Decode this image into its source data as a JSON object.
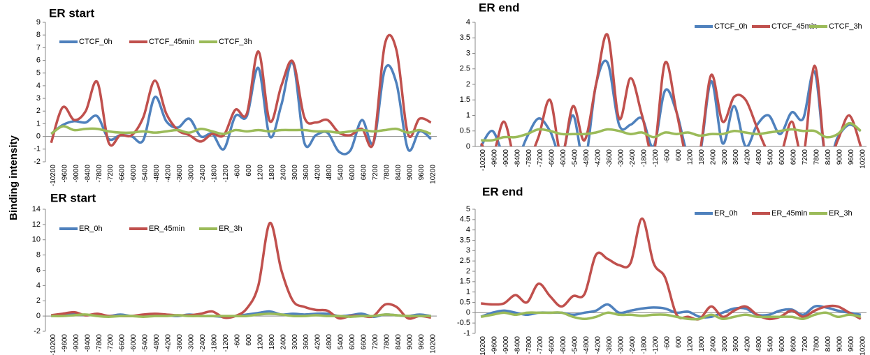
{
  "ylabel": "Binding intensity",
  "chart_data": [
    {
      "type": "line",
      "title": "ER start",
      "legend": "top-left",
      "categories": [
        -10200,
        -9600,
        -9000,
        -8400,
        -7800,
        -7200,
        -6600,
        -6000,
        -5400,
        -4800,
        -4200,
        -3600,
        -3000,
        -2400,
        -1800,
        -1200,
        -600,
        600,
        1200,
        1800,
        2400,
        3000,
        3600,
        4200,
        4800,
        5400,
        6000,
        6600,
        7200,
        7800,
        8400,
        9000,
        9600,
        10200
      ],
      "ylim": [
        -2,
        9
      ],
      "yticks": [
        -2,
        -1,
        0,
        1,
        2,
        3,
        4,
        5,
        6,
        7,
        8,
        9
      ],
      "series": [
        {
          "name": "CTCF_0h",
          "color": "#4f81bd",
          "values": [
            0.2,
            0.9,
            1.2,
            1.1,
            1.6,
            -0.2,
            0.1,
            0,
            -0.3,
            3.1,
            1.2,
            0.7,
            1.4,
            0,
            0.2,
            -1,
            1.6,
            1.6,
            5.4,
            0,
            2.5,
            5.8,
            -0.5,
            0.1,
            0.3,
            -1.2,
            -1.1,
            1.3,
            -0.5,
            5.3,
            4.2,
            -1,
            0.4,
            -0.2
          ]
        },
        {
          "name": "CTCF_45min",
          "color": "#c0504d",
          "values": [
            -0.5,
            2.3,
            1.3,
            2,
            4.3,
            -0.5,
            0.1,
            0.1,
            1.5,
            4.4,
            1.8,
            0.5,
            0.1,
            -0.4,
            0.2,
            0.1,
            2.1,
            1.8,
            6.7,
            1.2,
            4,
            5.9,
            1.5,
            1.1,
            1.3,
            0.3,
            0.1,
            0.6,
            -0.5,
            7.3,
            6.8,
            0.2,
            1.4,
            1.1
          ]
        },
        {
          "name": "CTCF_3h",
          "color": "#9bbb59",
          "values": [
            0.2,
            0.8,
            0.5,
            0.6,
            0.6,
            0.4,
            0.3,
            0.3,
            0.4,
            0.3,
            0.4,
            0.5,
            0.3,
            0.6,
            0.4,
            0.2,
            0.5,
            0.4,
            0.5,
            0.4,
            0.5,
            0.5,
            0.5,
            0.4,
            0.4,
            0.3,
            0.4,
            0.5,
            0.4,
            0.5,
            0.6,
            0.3,
            0.5,
            0.2
          ]
        }
      ]
    },
    {
      "type": "line",
      "title": "ER end",
      "legend": "top-right",
      "categories": [
        -10200,
        -9600,
        -9000,
        -8400,
        -7800,
        -7200,
        -6600,
        -6000,
        -5400,
        -4800,
        -4200,
        -3600,
        -3000,
        -2400,
        -1800,
        -1200,
        -600,
        600,
        1200,
        1800,
        2400,
        3000,
        3600,
        4200,
        4800,
        5400,
        6000,
        6600,
        7200,
        7800,
        8400,
        9000,
        9600,
        10200
      ],
      "ylim": [
        0,
        4
      ],
      "yticks": [
        0,
        0.5,
        1,
        1.5,
        2,
        2.5,
        3,
        3.5,
        4
      ],
      "series": [
        {
          "name": "CTCF_0h",
          "color": "#4f81bd",
          "values": [
            0,
            0.5,
            -0.3,
            -0.5,
            0.3,
            0.9,
            0.5,
            -0.3,
            1,
            -0.5,
            2,
            2.7,
            0.7,
            0.7,
            0.9,
            0,
            1.8,
            1.1,
            -0.3,
            -0.3,
            2.1,
            0.1,
            1.3,
            0,
            0.7,
            1,
            0.4,
            1.1,
            0.9,
            2.4,
            -0.5,
            0.3,
            0.7,
            0.5
          ]
        },
        {
          "name": "CTCF_45min",
          "color": "#c0504d",
          "values": [
            0.1,
            -0.3,
            0.8,
            -0.5,
            -0.5,
            0.3,
            1.5,
            -0.3,
            1.3,
            0.2,
            2,
            3.6,
            0.9,
            2.2,
            1,
            -0.2,
            2.7,
            1.1,
            -0.5,
            -0.2,
            2.3,
            0.8,
            1.6,
            1.5,
            0.6,
            -0.2,
            -0.3,
            0.8,
            -0.3,
            2.6,
            -0.5,
            0.2,
            1,
            0
          ]
        },
        {
          "name": "CTCF_3h",
          "color": "#9bbb59",
          "values": [
            0.2,
            0.2,
            0.3,
            0.3,
            0.4,
            0.55,
            0.5,
            0.4,
            0.4,
            0.4,
            0.45,
            0.55,
            0.5,
            0.4,
            0.45,
            0.3,
            0.45,
            0.4,
            0.45,
            0.35,
            0.4,
            0.4,
            0.5,
            0.45,
            0.4,
            0.45,
            0.5,
            0.55,
            0.5,
            0.5,
            0.3,
            0.4,
            0.75,
            0.5
          ]
        }
      ]
    },
    {
      "type": "line",
      "title": "ER start",
      "legend": "top-left",
      "categories": [
        -10200,
        -9600,
        -9000,
        -8400,
        -7800,
        -7200,
        -6600,
        -6000,
        -5400,
        -4800,
        -4200,
        -3600,
        -3000,
        -2400,
        -1800,
        -1200,
        -600,
        600,
        1200,
        1800,
        2400,
        3000,
        3600,
        4200,
        4800,
        5400,
        6000,
        6600,
        7200,
        7800,
        8400,
        9000,
        9600,
        10200
      ],
      "ylim": [
        -2,
        14
      ],
      "yticks": [
        -2,
        0,
        2,
        4,
        6,
        8,
        10,
        12,
        14
      ],
      "series": [
        {
          "name": "ER_0h",
          "color": "#4f81bd",
          "values": [
            0,
            0.2,
            0.3,
            0.1,
            0.2,
            0,
            0.2,
            0,
            0.1,
            0.2,
            0.1,
            0,
            0.2,
            0,
            0,
            -0.1,
            0,
            0.2,
            0.4,
            0.6,
            0.2,
            0.3,
            0.2,
            0.3,
            0.3,
            0,
            0.1,
            0.3,
            -0.1,
            0.2,
            0.1,
            0,
            0.2,
            0
          ]
        },
        {
          "name": "ER_45min",
          "color": "#c0504d",
          "values": [
            0.1,
            0.3,
            0.5,
            0.1,
            0.3,
            0,
            0,
            0,
            0.2,
            0.3,
            0.2,
            0.1,
            0.1,
            0.3,
            0.6,
            -0.2,
            0,
            1,
            4,
            12.2,
            6,
            2,
            1.2,
            0.8,
            0.7,
            -0.3,
            0,
            0,
            0,
            1.5,
            1.2,
            -0.3,
            0,
            -0.2
          ]
        },
        {
          "name": "ER_3h",
          "color": "#9bbb59",
          "values": [
            0,
            0,
            0.1,
            0.2,
            0,
            -0.1,
            0,
            0,
            -0.1,
            0,
            0,
            0.1,
            0,
            0,
            0,
            0,
            0,
            0,
            0.2,
            0.3,
            0.2,
            0,
            0,
            0.1,
            0,
            0,
            -0.1,
            0,
            0,
            0.2,
            0.1,
            0,
            0,
            0
          ]
        }
      ]
    },
    {
      "type": "line",
      "title": "ER end",
      "legend": "top-right",
      "categories": [
        -10200,
        -9600,
        -9000,
        -8400,
        -7800,
        -7200,
        -6600,
        -6000,
        -5400,
        -4800,
        -4200,
        -3600,
        -3000,
        -2400,
        -1800,
        -1200,
        -600,
        600,
        1200,
        1800,
        2400,
        3000,
        3600,
        4200,
        4800,
        5400,
        6000,
        6600,
        7200,
        7800,
        8400,
        9000,
        9600,
        10200
      ],
      "ylim": [
        -1,
        5
      ],
      "yticks": [
        -1,
        -0.5,
        0,
        0.5,
        1,
        1.5,
        2,
        2.5,
        3,
        3.5,
        4,
        4.5,
        5
      ],
      "series": [
        {
          "name": "ER_0h",
          "color": "#4f81bd",
          "values": [
            -0.2,
            0,
            0.1,
            0,
            -0.1,
            0,
            0,
            0,
            -0.1,
            0,
            0.1,
            0.4,
            0,
            0.1,
            0.2,
            0.25,
            0.2,
            0,
            0.05,
            -0.2,
            -0.2,
            0,
            0.2,
            0.2,
            -0.1,
            -0.1,
            0.1,
            0.15,
            -0.1,
            0.3,
            0.25,
            0.1,
            0,
            -0.1
          ]
        },
        {
          "name": "ER_45min",
          "color": "#c0504d",
          "values": [
            0.45,
            0.4,
            0.45,
            0.85,
            0.5,
            1.4,
            0.8,
            0.3,
            0.8,
            0.9,
            2.8,
            2.6,
            2.3,
            2.4,
            4.55,
            2.4,
            1.7,
            -0.1,
            -0.2,
            -0.3,
            0.3,
            -0.2,
            0.1,
            0.3,
            -0.1,
            -0.3,
            -0.2,
            0.1,
            -0.2,
            0.1,
            0.3,
            0.3,
            0,
            -0.3
          ]
        },
        {
          "name": "ER_3h",
          "color": "#9bbb59",
          "values": [
            -0.2,
            -0.1,
            0,
            -0.1,
            0,
            0,
            0,
            0,
            -0.2,
            -0.3,
            -0.2,
            0,
            -0.1,
            -0.1,
            -0.15,
            -0.1,
            -0.1,
            -0.2,
            -0.3,
            -0.3,
            -0.1,
            -0.3,
            -0.2,
            -0.1,
            -0.2,
            -0.2,
            -0.2,
            -0.2,
            -0.3,
            -0.1,
            0,
            -0.2,
            -0.1,
            -0.2
          ]
        }
      ]
    }
  ]
}
